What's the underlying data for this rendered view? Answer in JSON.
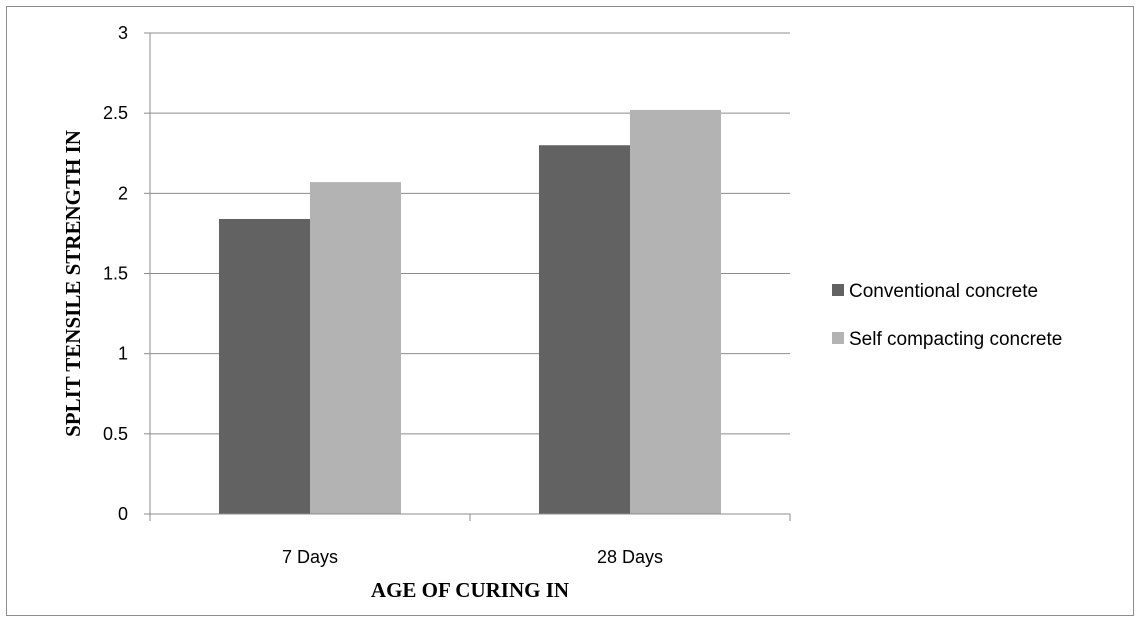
{
  "chart_data": {
    "type": "bar",
    "title": "",
    "categories": [
      "7 Days",
      "28 Days"
    ],
    "series": [
      {
        "name": "Conventional concrete",
        "values": [
          1.84,
          2.3
        ],
        "color": "#626262"
      },
      {
        "name": "Self compacting concrete",
        "values": [
          2.07,
          2.52
        ],
        "color": "#b3b3b3"
      }
    ],
    "xlabel": "AGE OF CURING IN",
    "ylabel": "SPLIT TENSILE STRENGTH IN",
    "ylim": [
      0,
      3
    ],
    "yticks": [
      0,
      0.5,
      1,
      1.5,
      2,
      2.5,
      3
    ],
    "ytick_labels": [
      "0",
      "0.5",
      "1",
      "1.5",
      "2",
      "2.5",
      "3"
    ],
    "grid": true,
    "legend_position": "right"
  }
}
